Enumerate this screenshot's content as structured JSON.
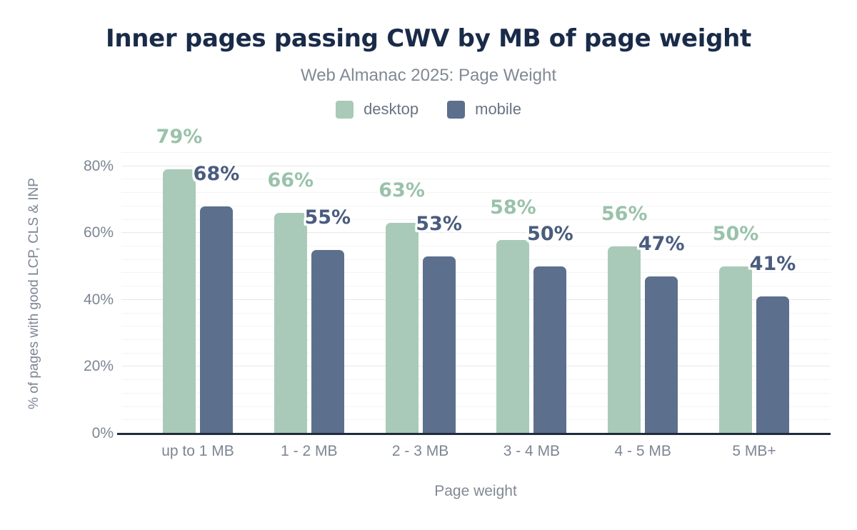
{
  "title": "Inner pages passing CWV by MB of page weight",
  "subtitle": "Web Almanac 2025: Page Weight",
  "legend": {
    "items": [
      {
        "label": "desktop",
        "color": "#a9cab8"
      },
      {
        "label": "mobile",
        "color": "#5c6f8d"
      }
    ]
  },
  "colors": {
    "title": "#1a2b49",
    "desktop_bar": "#a9cab8",
    "desktop_label": "#9ac2ab",
    "mobile_bar": "#5c6f8d",
    "mobile_label": "#4a5c7e",
    "axis_text": "#7d8694",
    "axis_line": "#1f2c3d",
    "grid_major": "#e7e7e7",
    "grid_minor": "#f4f4f4"
  },
  "chart_data": {
    "type": "bar",
    "title": "Inner pages passing CWV by MB of page weight",
    "subtitle": "Web Almanac 2025: Page Weight",
    "categories": [
      "up to 1 MB",
      "1 - 2 MB",
      "2 - 3 MB",
      "3 - 4 MB",
      "4 - 5 MB",
      "5 MB+"
    ],
    "series": [
      {
        "name": "desktop",
        "color": "#a9cab8",
        "label_color": "#9ac2ab",
        "values": [
          79,
          66,
          63,
          58,
          56,
          50
        ]
      },
      {
        "name": "mobile",
        "color": "#5c6f8d",
        "label_color": "#4a5c7e",
        "values": [
          68,
          55,
          53,
          50,
          47,
          41
        ]
      }
    ],
    "value_suffix": "%",
    "xlabel": "Page weight",
    "ylabel": "% of pages with good LCP, CLS & INP",
    "ylim": [
      0,
      84
    ],
    "yticks": [
      {
        "value": 0,
        "label": "0%"
      },
      {
        "value": 20,
        "label": "20%"
      },
      {
        "value": 40,
        "label": "40%"
      },
      {
        "value": 60,
        "label": "60%"
      },
      {
        "value": 80,
        "label": "80%"
      }
    ],
    "grid": {
      "minor_step": 4,
      "major_step": 20,
      "on": true
    },
    "legend_position": "top",
    "data_labels": true
  }
}
